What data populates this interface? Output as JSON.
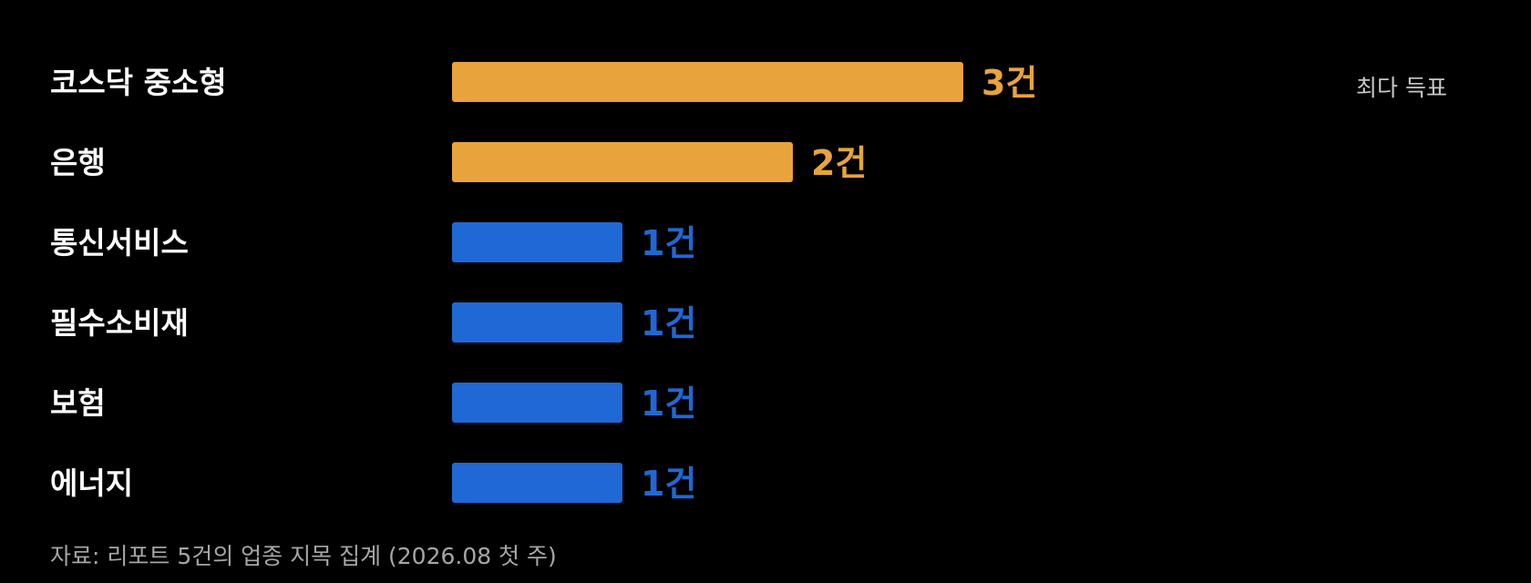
{
  "chart_data": {
    "type": "bar",
    "orientation": "horizontal",
    "categories": [
      "코스닥 중소형",
      "은행",
      "통신서비스",
      "필수소비재",
      "보험",
      "에너지"
    ],
    "values": [
      3,
      2,
      1,
      1,
      1,
      1
    ],
    "value_labels": [
      "3건",
      "2건",
      "1건",
      "1건",
      "1건",
      "1건"
    ],
    "highlight": [
      true,
      true,
      false,
      false,
      false,
      false
    ],
    "colors": {
      "highlight": "#E8A33D",
      "default": "#1F68D6",
      "background": "#000000"
    },
    "legend_note": "최다 득표",
    "legend_placement": "top-right",
    "xlim": [
      0,
      3
    ],
    "grid": false,
    "source": "자료: 리포트 5건의 업종 지목 집계 (2026.08 첫 주)"
  }
}
